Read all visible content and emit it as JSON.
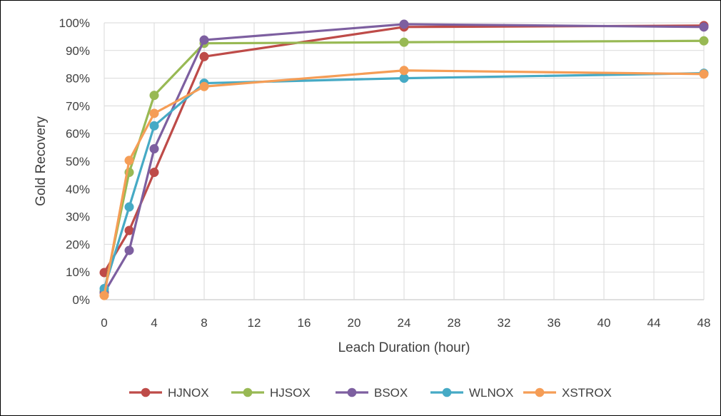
{
  "chart_data": {
    "type": "line",
    "title": "",
    "xlabel": "Leach Duration (hour)",
    "ylabel": "Gold Recovery",
    "xlim": [
      0,
      48
    ],
    "ylim": [
      0,
      100
    ],
    "x_ticks": [
      0,
      4,
      8,
      12,
      16,
      20,
      24,
      28,
      32,
      36,
      40,
      44,
      48
    ],
    "x_tick_labels": [
      "0",
      "4",
      "8",
      "12",
      "16",
      "20",
      "24",
      "28",
      "32",
      "36",
      "40",
      "44",
      "48"
    ],
    "y_ticks": [
      0,
      10,
      20,
      30,
      40,
      50,
      60,
      70,
      80,
      90,
      100
    ],
    "y_tick_labels": [
      "0%",
      "10%",
      "20%",
      "30%",
      "40%",
      "50%",
      "60%",
      "70%",
      "80%",
      "90%",
      "100%"
    ],
    "grid": true,
    "legend_position": "bottom",
    "x": [
      0,
      2,
      4,
      8,
      24,
      48
    ],
    "series": [
      {
        "name": "HJNOX",
        "color": "#BE4B48",
        "values": [
          9.8,
          25.0,
          46.0,
          87.8,
          98.5,
          99.0
        ]
      },
      {
        "name": "HJSOX",
        "color": "#98B954",
        "values": [
          3.0,
          46.0,
          73.8,
          92.6,
          93.0,
          93.5
        ]
      },
      {
        "name": "BSOX",
        "color": "#7D5FA0",
        "values": [
          2.5,
          17.8,
          54.5,
          93.8,
          99.5,
          98.5
        ]
      },
      {
        "name": "WLNOX",
        "color": "#46AAC5",
        "values": [
          4.0,
          33.5,
          62.8,
          78.2,
          80.0,
          81.8
        ]
      },
      {
        "name": "XSTROX",
        "color": "#F59D56",
        "values": [
          1.5,
          50.3,
          67.3,
          77.0,
          82.8,
          81.5
        ]
      }
    ]
  }
}
